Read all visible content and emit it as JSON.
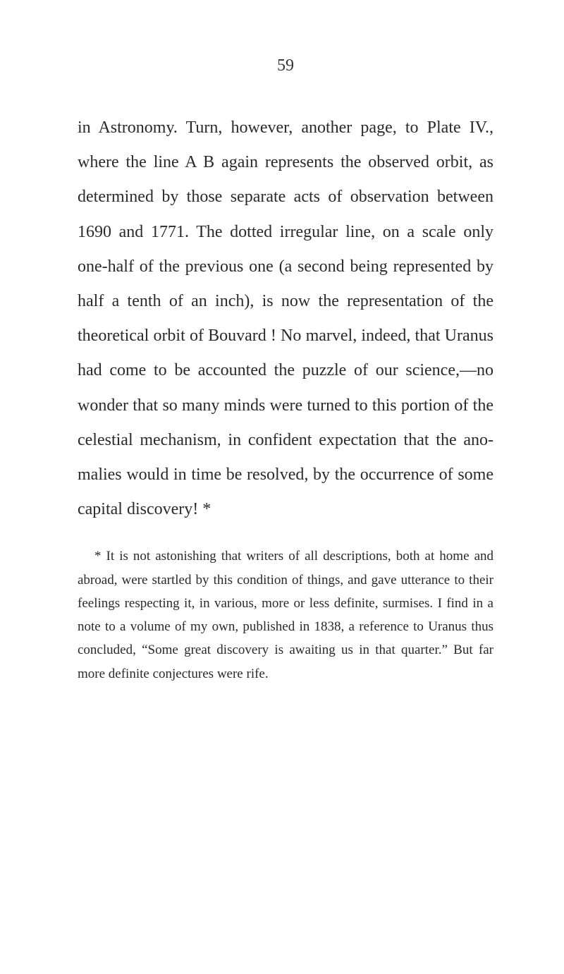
{
  "page_number": "59",
  "body": "in Astronomy. Turn, however, another page, to Plate IV., where the line A B again represents the observed orbit, as determined by those separate acts of observation between 1690 and 1771. The dotted irregular line, on a scale only one-half of the previous one (a second being represented by half a tenth of an inch), is now the representation of the theoretical orbit of Bouvard ! No marvel, indeed, that Uranus had come to be accounted the puzzle of our science,—no wonder that so many minds were turned to this portion of the celestial mechanism, in confident expectation that the ano­malies would in time be resolved, by the occur­rence of some capital discovery! *",
  "footnote": "* It is not astonishing that writers of all descriptions, both at home and abroad, were startled by this condition of things, and gave utterance to their feelings respecting it, in various, more or less definite, surmises. I find in a note to a volume of my own, published in 1838, a reference to Uranus thus concluded, “Some great discovery is awaiting us in that quarter.” But far more definite conjectures were rife.",
  "colors": {
    "background": "#ffffff",
    "text": "#2a2a2a"
  },
  "typography": {
    "body_fontsize": 24,
    "body_lineheight": 2.05,
    "footnote_fontsize": 19,
    "footnote_lineheight": 1.75,
    "pagenum_fontsize": 24,
    "font_family": "Georgia, Times New Roman, serif"
  }
}
